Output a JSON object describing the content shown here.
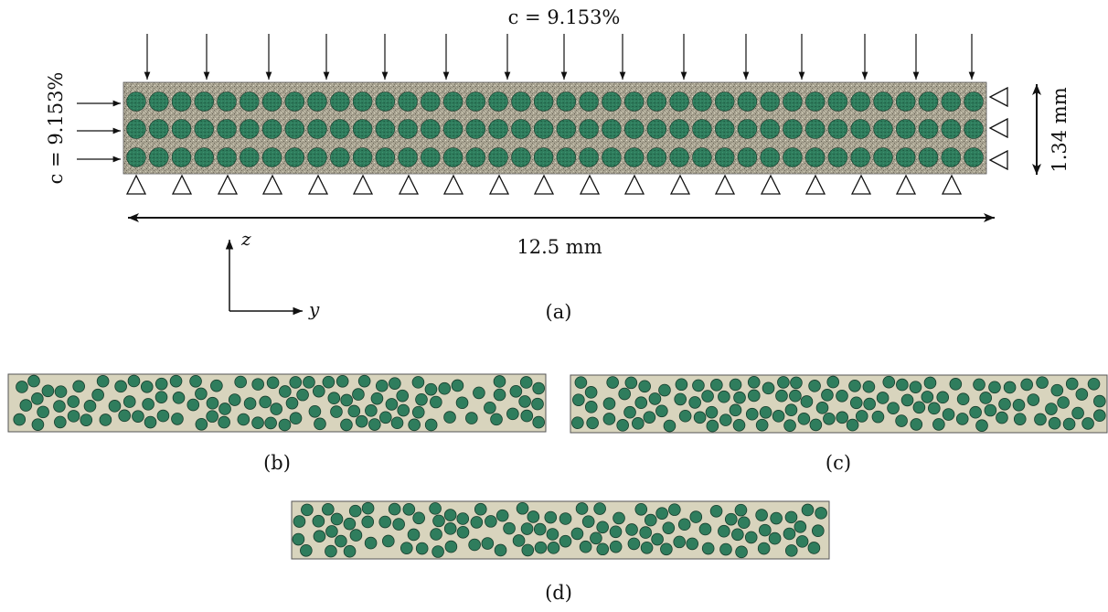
{
  "panel_a": {
    "load_top": "c = 9.153%",
    "load_left": "c = 9.153%",
    "height_dim": "1.34 mm",
    "width_dim": "12.5 mm",
    "axis_z": "z",
    "axis_y": "y",
    "caption": "(a)"
  },
  "panel_b": {
    "caption": "(b)"
  },
  "panel_c": {
    "caption": "(c)"
  },
  "panel_d": {
    "caption": "(d)"
  },
  "colors": {
    "fiber": "#2f7d5d",
    "fiber_edge": "#173d2c",
    "matrix_random": "#d8d4bd",
    "matrix_textured": "#a7a28f",
    "line": "#111111"
  }
}
